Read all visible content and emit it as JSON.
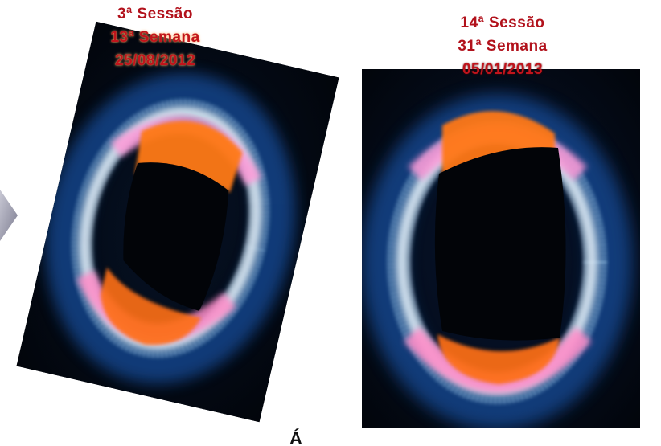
{
  "left_photo": {
    "session": "3ª Sessão",
    "week": "13ª Semana",
    "date": "25/08/2012"
  },
  "right_photo": {
    "session": "14ª Sessão",
    "week": "31ª Semana",
    "date": "05/01/2013"
  },
  "bottom_text": "Á",
  "colors": {
    "caption_red": "#b2121c",
    "photo_background": "#03070e",
    "corona_blue": "#3aa0ff",
    "corona_pink": "#ff8fd0",
    "corona_orange": "#ff7a1a"
  },
  "icons": {
    "side_arrow": "chevron-right-icon"
  }
}
